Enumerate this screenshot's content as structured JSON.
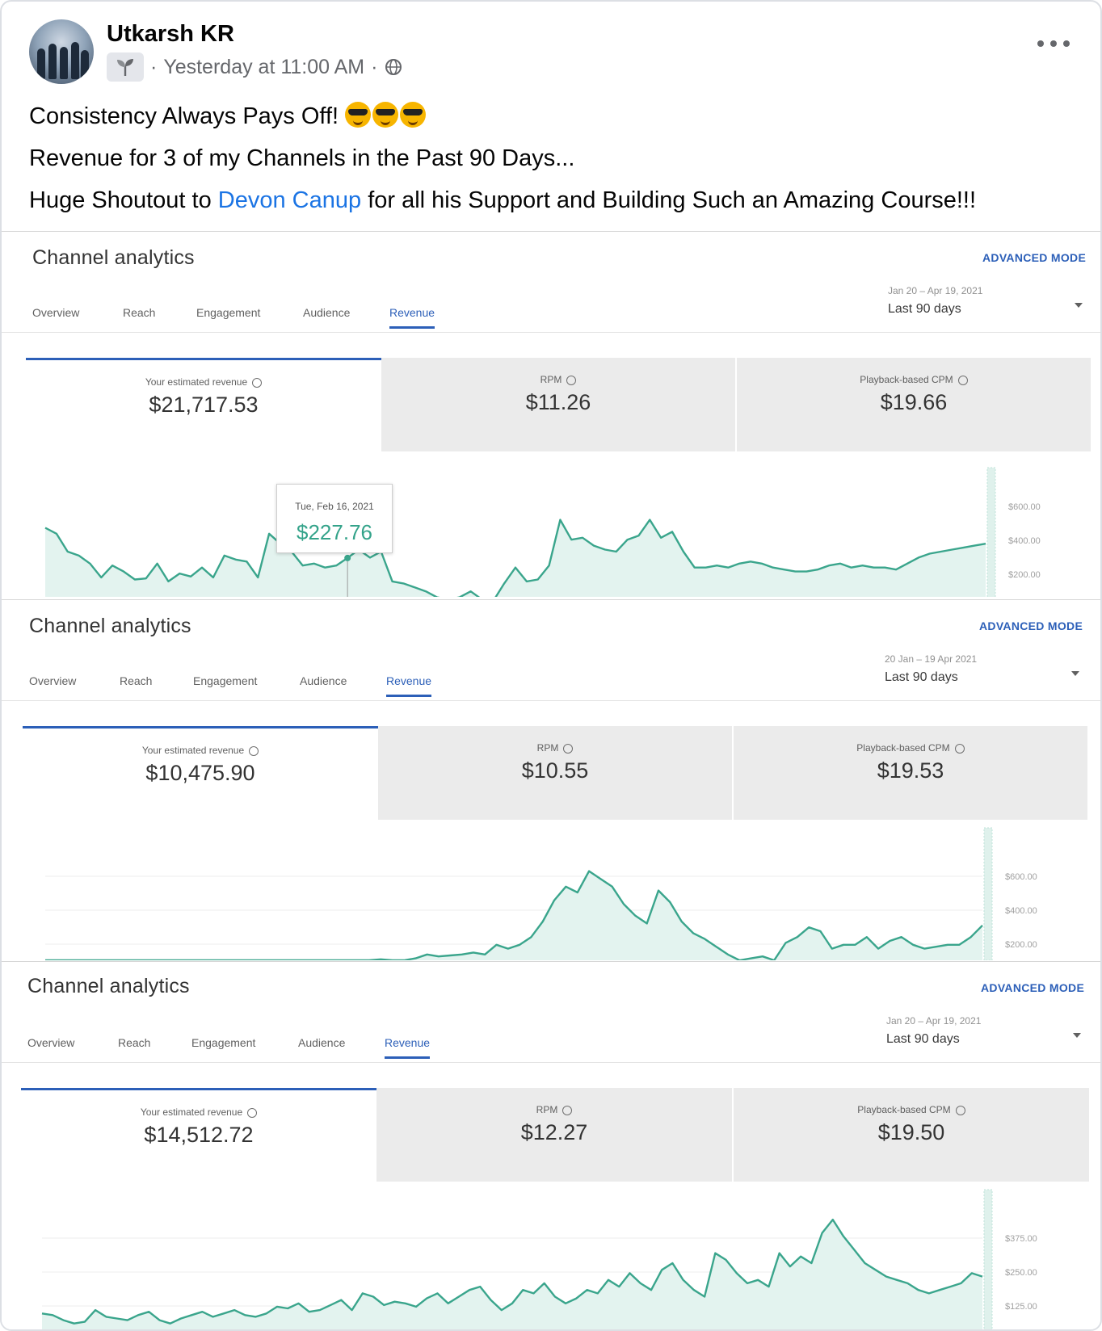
{
  "post": {
    "author": "Utkarsh KR",
    "timestamp": "Yesterday at 11:00 AM",
    "separator": "·",
    "audience_icon": "globe-icon",
    "lines": [
      "Consistency Always Pays Off!",
      "Revenue for 3 of my Channels in the Past 90 Days...",
      "Huge Shoutout to",
      "Devon Canup",
      "for all his Support and Building Such an Amazing Course!!!"
    ],
    "emoji": [
      "😎",
      "😎",
      "😎"
    ]
  },
  "colors": {
    "accent": "#2c5fb8",
    "line": "#3aa58c",
    "fill": "#e3f3ef",
    "link": "#1b74e4"
  },
  "panels": [
    {
      "title": "Channel analytics",
      "advanced": "ADVANCED MODE",
      "tabs": [
        "Overview",
        "Reach",
        "Engagement",
        "Audience",
        "Revenue"
      ],
      "active_tab": "Revenue",
      "date_range": "Jan 20 – Apr 19, 2021",
      "period": "Last 90 days",
      "metrics": [
        {
          "label": "Your estimated revenue",
          "value": "$21,717.53"
        },
        {
          "label": "RPM",
          "value": "$11.26"
        },
        {
          "label": "Playback-based CPM",
          "value": "$19.66"
        }
      ],
      "tooltip": {
        "date": "Tue, Feb 16, 2021",
        "value": "$227.76"
      },
      "yticks": [
        "$600.00",
        "$400.00",
        "$200.00"
      ]
    },
    {
      "title": "Channel analytics",
      "advanced": "ADVANCED MODE",
      "tabs": [
        "Overview",
        "Reach",
        "Engagement",
        "Audience",
        "Revenue"
      ],
      "active_tab": "Revenue",
      "date_range": "20 Jan – 19 Apr 2021",
      "period": "Last 90 days",
      "metrics": [
        {
          "label": "Your estimated revenue",
          "value": "$10,475.90"
        },
        {
          "label": "RPM",
          "value": "$10.55"
        },
        {
          "label": "Playback-based CPM",
          "value": "$19.53"
        }
      ],
      "yticks": [
        "$600.00",
        "$400.00",
        "$200.00"
      ]
    },
    {
      "title": "Channel analytics",
      "advanced": "ADVANCED MODE",
      "tabs": [
        "Overview",
        "Reach",
        "Engagement",
        "Audience",
        "Revenue"
      ],
      "active_tab": "Revenue",
      "date_range": "Jan 20 – Apr 19, 2021",
      "period": "Last 90 days",
      "metrics": [
        {
          "label": "Your estimated revenue",
          "value": "$14,512.72"
        },
        {
          "label": "RPM",
          "value": "$12.27"
        },
        {
          "label": "Playback-based CPM",
          "value": "$19.50"
        }
      ],
      "yticks": [
        "$375.00",
        "$250.00",
        "$125.00"
      ]
    }
  ],
  "chart_data": [
    {
      "type": "area",
      "series": [
        {
          "values": [
            380,
            350,
            260,
            240,
            200,
            130,
            190,
            160,
            120,
            125,
            200,
            110,
            150,
            135,
            180,
            130,
            240,
            220,
            210,
            130,
            350,
            300,
            260,
            190,
            200,
            180,
            190,
            227.76,
            270,
            230,
            260,
            110,
            100,
            80,
            60,
            30,
            20,
            30,
            60,
            20,
            10,
            100,
            180,
            110,
            120,
            190,
            420,
            320,
            330,
            290,
            270,
            260,
            320,
            340,
            420,
            330,
            360,
            260,
            180,
            180,
            190,
            180,
            200,
            210,
            200,
            180,
            170,
            160,
            160,
            170,
            190,
            200,
            180,
            190,
            180,
            180,
            170,
            200,
            230,
            250,
            260,
            270,
            280,
            290,
            300
          ]
        }
      ],
      "ylim": [
        0,
        650
      ]
    },
    {
      "type": "area",
      "series": [
        {
          "values": [
            0,
            0,
            0,
            0,
            0,
            0,
            0,
            0,
            0,
            0,
            0,
            0,
            0,
            0,
            0,
            0,
            0,
            0,
            0,
            0,
            0,
            0,
            0,
            0,
            0,
            0,
            0,
            0,
            0,
            5,
            0,
            0,
            10,
            30,
            20,
            25,
            30,
            40,
            30,
            80,
            60,
            80,
            120,
            200,
            310,
            380,
            350,
            460,
            420,
            380,
            290,
            230,
            190,
            360,
            300,
            200,
            140,
            110,
            70,
            30,
            0,
            10,
            20,
            0,
            90,
            120,
            170,
            150,
            60,
            80,
            80,
            120,
            60,
            100,
            120,
            80,
            60,
            70,
            80,
            80,
            120,
            180
          ]
        }
      ],
      "ylim": [
        0,
        650
      ]
    },
    {
      "type": "area",
      "series": [
        {
          "values": [
            50,
            45,
            30,
            20,
            25,
            60,
            40,
            35,
            30,
            45,
            55,
            30,
            20,
            35,
            45,
            55,
            40,
            50,
            60,
            45,
            40,
            50,
            70,
            65,
            80,
            55,
            60,
            75,
            90,
            60,
            110,
            100,
            75,
            85,
            80,
            70,
            95,
            110,
            80,
            100,
            120,
            130,
            90,
            60,
            80,
            120,
            110,
            140,
            100,
            80,
            95,
            120,
            110,
            150,
            130,
            170,
            140,
            120,
            180,
            200,
            150,
            120,
            100,
            230,
            210,
            170,
            140,
            150,
            130,
            230,
            190,
            220,
            200,
            290,
            330,
            280,
            240,
            200,
            180,
            160,
            150,
            140,
            120,
            110,
            120,
            130,
            140,
            170,
            160
          ]
        }
      ],
      "ylim": [
        0,
        400
      ]
    }
  ]
}
